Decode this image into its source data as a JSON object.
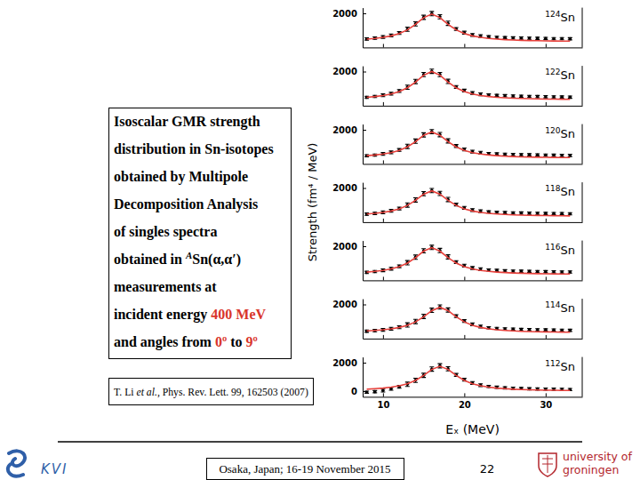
{
  "chart_data": [
    {
      "type": "scatter",
      "title": "124Sn",
      "x": [
        8,
        9,
        10,
        11,
        12,
        13,
        14,
        15,
        16,
        17,
        18,
        19,
        20,
        21,
        22,
        23,
        24,
        25,
        26,
        27,
        28,
        29,
        30,
        31,
        32,
        33
      ],
      "xlim": [
        7.5,
        34.5
      ],
      "xticks": [
        10,
        20,
        30
      ],
      "ylim": [
        -400,
        2400
      ],
      "yticks": [
        2000
      ],
      "tick_labels": "y",
      "series": [
        {
          "type": "scatter",
          "color": "#000000",
          "marker": "circle",
          "values": [
            200,
            260,
            340,
            450,
            620,
            880,
            1260,
            1720,
            1980,
            1760,
            1300,
            900,
            640,
            480,
            400,
            350,
            310,
            290,
            270,
            260,
            250,
            240,
            230,
            220,
            220,
            210
          ],
          "errors": [
            80,
            80,
            100,
            100,
            100,
            150,
            150,
            150,
            150,
            150,
            150,
            100,
            100,
            100,
            100,
            80,
            80,
            80,
            80,
            80,
            80,
            80,
            80,
            80,
            80,
            80
          ]
        },
        {
          "type": "line",
          "color": "#e8413c",
          "line_style": "solid",
          "values": [
            187,
            236,
            308,
            415,
            579,
            837,
            1225,
            1698,
            1950,
            1698,
            1225,
            837,
            579,
            415,
            308,
            236,
            187,
            150,
            123,
            103,
            88,
            74,
            64,
            57,
            51,
            45
          ]
        }
      ]
    },
    {
      "type": "scatter",
      "title": "122Sn",
      "x": [
        8,
        9,
        10,
        11,
        12,
        13,
        14,
        15,
        16,
        17,
        18,
        19,
        20,
        21,
        22,
        23,
        24,
        25,
        26,
        27,
        28,
        29,
        30,
        31,
        32,
        33
      ],
      "xlim": [
        7.5,
        34.5
      ],
      "xticks": [
        10,
        20,
        30
      ],
      "ylim": [
        -400,
        2400
      ],
      "yticks": [
        2000
      ],
      "tick_labels": "y",
      "series": [
        {
          "type": "scatter",
          "color": "#000000",
          "marker": "circle",
          "values": [
            190,
            250,
            330,
            440,
            630,
            900,
            1300,
            1790,
            2020,
            1790,
            1310,
            920,
            660,
            490,
            400,
            350,
            320,
            300,
            280,
            260,
            250,
            240,
            230,
            220,
            210,
            200
          ],
          "errors": [
            80,
            80,
            100,
            100,
            100,
            150,
            150,
            150,
            150,
            150,
            150,
            100,
            100,
            100,
            100,
            80,
            80,
            80,
            80,
            80,
            80,
            80,
            80,
            80,
            80,
            80
          ]
        },
        {
          "type": "line",
          "color": "#e8413c",
          "line_style": "solid",
          "values": [
            192,
            242,
            316,
            426,
            594,
            858,
            1256,
            1742,
            2000,
            1742,
            1256,
            858,
            594,
            426,
            316,
            242,
            192,
            154,
            126,
            106,
            90,
            76,
            66,
            58,
            52,
            46
          ]
        }
      ]
    },
    {
      "type": "scatter",
      "title": "120Sn",
      "x": [
        8,
        9,
        10,
        11,
        12,
        13,
        14,
        15,
        16,
        17,
        18,
        19,
        20,
        21,
        22,
        23,
        24,
        25,
        26,
        27,
        28,
        29,
        30,
        31,
        32,
        33
      ],
      "xlim": [
        7.5,
        34.5
      ],
      "xticks": [
        10,
        20,
        30
      ],
      "ylim": [
        -400,
        2400
      ],
      "yticks": [
        2000
      ],
      "tick_labels": "y",
      "series": [
        {
          "type": "scatter",
          "color": "#000000",
          "marker": "circle",
          "values": [
            170,
            220,
            300,
            410,
            580,
            830,
            1200,
            1640,
            1870,
            1660,
            1220,
            860,
            620,
            460,
            380,
            330,
            300,
            280,
            260,
            250,
            240,
            230,
            220,
            210,
            200,
            200
          ],
          "errors": [
            80,
            80,
            100,
            100,
            100,
            150,
            150,
            150,
            150,
            150,
            150,
            100,
            100,
            100,
            100,
            80,
            80,
            80,
            80,
            80,
            80,
            80,
            80,
            80,
            80,
            80
          ]
        },
        {
          "type": "line",
          "color": "#e8413c",
          "line_style": "solid",
          "values": [
            178,
            224,
            292,
            394,
            549,
            794,
            1162,
            1611,
            1850,
            1611,
            1162,
            794,
            549,
            394,
            292,
            224,
            178,
            142,
            117,
            98,
            83,
            70,
            61,
            54,
            48,
            43
          ]
        }
      ]
    },
    {
      "type": "scatter",
      "title": "118Sn",
      "x": [
        8,
        9,
        10,
        11,
        12,
        13,
        14,
        15,
        16,
        17,
        18,
        19,
        20,
        21,
        22,
        23,
        24,
        25,
        26,
        27,
        28,
        29,
        30,
        31,
        32,
        33
      ],
      "xlim": [
        7.5,
        34.5
      ],
      "xticks": [
        10,
        20,
        30
      ],
      "ylim": [
        -400,
        2400
      ],
      "yticks": [
        2000
      ],
      "tick_labels": "y",
      "series": [
        {
          "type": "scatter",
          "color": "#000000",
          "marker": "circle",
          "values": [
            160,
            210,
            290,
            400,
            560,
            800,
            1160,
            1600,
            1820,
            1620,
            1190,
            840,
            600,
            450,
            370,
            320,
            290,
            270,
            250,
            240,
            230,
            220,
            210,
            200,
            200,
            190
          ],
          "errors": [
            80,
            80,
            100,
            100,
            100,
            150,
            150,
            150,
            150,
            150,
            150,
            100,
            100,
            100,
            100,
            80,
            80,
            80,
            80,
            80,
            80,
            80,
            80,
            80,
            80,
            80
          ]
        },
        {
          "type": "line",
          "color": "#e8413c",
          "line_style": "solid",
          "values": [
            173,
            218,
            284,
            383,
            535,
            772,
            1130,
            1568,
            1800,
            1568,
            1130,
            772,
            535,
            383,
            284,
            218,
            173,
            139,
            113,
            95,
            81,
            68,
            59,
            52,
            47,
            41
          ]
        }
      ]
    },
    {
      "type": "scatter",
      "title": "116Sn",
      "x": [
        8,
        9,
        10,
        11,
        12,
        13,
        14,
        15,
        16,
        17,
        18,
        19,
        20,
        21,
        22,
        23,
        24,
        25,
        26,
        27,
        28,
        29,
        30,
        31,
        32,
        33
      ],
      "xlim": [
        7.5,
        34.5
      ],
      "xticks": [
        10,
        20,
        30
      ],
      "ylim": [
        -400,
        2400
      ],
      "yticks": [
        2000
      ],
      "tick_labels": "y",
      "series": [
        {
          "type": "scatter",
          "color": "#000000",
          "marker": "circle",
          "values": [
            160,
            220,
            310,
            420,
            590,
            840,
            1230,
            1680,
            1920,
            1700,
            1250,
            880,
            630,
            470,
            380,
            330,
            300,
            270,
            250,
            240,
            230,
            220,
            210,
            200,
            190,
            190
          ],
          "errors": [
            80,
            80,
            100,
            100,
            100,
            150,
            150,
            150,
            150,
            150,
            150,
            100,
            100,
            100,
            100,
            80,
            80,
            80,
            80,
            80,
            80,
            80,
            80,
            80,
            80,
            80
          ]
        },
        {
          "type": "line",
          "color": "#e8413c",
          "line_style": "solid",
          "values": [
            182,
            230,
            300,
            405,
            564,
            815,
            1193,
            1655,
            1900,
            1655,
            1193,
            815,
            564,
            405,
            300,
            230,
            182,
            146,
            120,
            101,
            86,
            72,
            63,
            55,
            49,
            44
          ]
        }
      ]
    },
    {
      "type": "scatter",
      "title": "114Sn",
      "x": [
        8,
        9,
        10,
        11,
        12,
        13,
        14,
        15,
        16,
        17,
        18,
        19,
        20,
        21,
        22,
        23,
        24,
        25,
        26,
        27,
        28,
        29,
        30,
        31,
        32,
        33
      ],
      "xlim": [
        7.5,
        34.5
      ],
      "xticks": [
        10,
        20,
        30
      ],
      "ylim": [
        -400,
        2400
      ],
      "yticks": [
        2000
      ],
      "tick_labels": "y",
      "series": [
        {
          "type": "scatter",
          "color": "#000000",
          "marker": "circle",
          "values": [
            120,
            160,
            210,
            290,
            400,
            560,
            800,
            1160,
            1590,
            1820,
            1610,
            1180,
            830,
            600,
            450,
            360,
            310,
            280,
            260,
            240,
            230,
            220,
            210,
            200,
            190,
            180
          ],
          "errors": [
            80,
            80,
            100,
            100,
            100,
            150,
            150,
            150,
            150,
            150,
            150,
            100,
            100,
            100,
            100,
            80,
            80,
            80,
            80,
            80,
            80,
            80,
            80,
            80,
            80,
            80
          ]
        },
        {
          "type": "line",
          "color": "#e8413c",
          "line_style": "solid",
          "values": [
            139,
            173,
            218,
            284,
            383,
            535,
            772,
            1130,
            1568,
            1800,
            1568,
            1130,
            772,
            535,
            383,
            284,
            218,
            173,
            139,
            113,
            95,
            81,
            68,
            59,
            52,
            47
          ]
        }
      ]
    },
    {
      "type": "scatter",
      "title": "112Sn",
      "x": [
        8,
        9,
        10,
        11,
        12,
        13,
        14,
        15,
        16,
        17,
        18,
        19,
        20,
        21,
        22,
        23,
        24,
        25,
        26,
        27,
        28,
        29,
        30,
        31,
        32,
        33
      ],
      "xlim": [
        7.5,
        34.5
      ],
      "xticks": [
        10,
        20,
        30
      ],
      "ylim": [
        -400,
        2400
      ],
      "yticks": [
        0,
        2000
      ],
      "xlabel": "Eₓ (MeV)",
      "ylabel": "Strength (fm⁴ / MeV)",
      "series": [
        {
          "type": "scatter",
          "color": "#000000",
          "marker": "circle",
          "values": [
            -80,
            -40,
            40,
            160,
            300,
            480,
            760,
            1110,
            1550,
            1780,
            1570,
            1140,
            800,
            570,
            420,
            330,
            270,
            230,
            200,
            180,
            160,
            150,
            140,
            130,
            120,
            110
          ],
          "errors": [
            80,
            80,
            100,
            100,
            100,
            150,
            150,
            150,
            150,
            150,
            150,
            100,
            100,
            100,
            100,
            80,
            80,
            80,
            80,
            80,
            80,
            80,
            80,
            80,
            80,
            80
          ]
        },
        {
          "type": "line",
          "color": "#e8413c",
          "line_style": "solid",
          "values": [
            135,
            168,
            212,
            277,
            373,
            520,
            751,
            1099,
            1524,
            1750,
            1524,
            1099,
            751,
            520,
            373,
            277,
            212,
            168,
            135,
            110,
            93,
            79,
            67,
            58,
            51,
            46
          ]
        }
      ]
    }
  ],
  "slide": {
    "textbox": {
      "lines": [
        [
          {
            "text": "Isoscalar GMR strength"
          }
        ],
        [
          {
            "text": "distribution in Sn-isotopes"
          }
        ],
        [
          {
            "text": "obtained by Multipole"
          }
        ],
        [
          {
            "text": "Decomposition Analysis"
          }
        ],
        [
          {
            "text": "of singles spectra"
          }
        ],
        [
          {
            "text": "obtained in "
          },
          {
            "text": "A",
            "superscript": true,
            "italic": true
          },
          {
            "text": "Sn(α,α′)"
          }
        ],
        [
          {
            "text": "measurements at"
          }
        ],
        [
          {
            "text": "incident energy "
          },
          {
            "text": "400 MeV",
            "color": "#d9352b"
          }
        ],
        [
          {
            "text": "and angles from "
          },
          {
            "text": "0º",
            "color": "#d9352b"
          },
          {
            "text": " to "
          },
          {
            "text": "9º",
            "color": "#d9352b"
          }
        ]
      ]
    },
    "reference": [
      {
        "text": "T. Li "
      },
      {
        "text": "et al.",
        "italic": true
      },
      {
        "text": ", Phys. Rev. Lett. 99, 162503 (2007)"
      }
    ],
    "footer": "Osaka, Japan; 16-19 November 2015",
    "page": "22",
    "logo_left": "KVI",
    "logo_right": [
      "university of",
      "groningen"
    ]
  }
}
